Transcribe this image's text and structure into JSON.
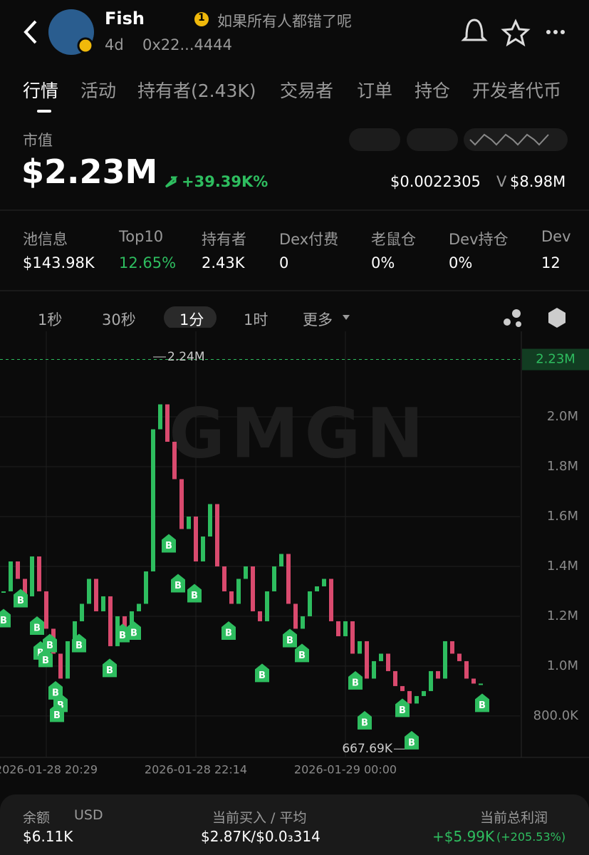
{
  "header": {
    "name": "Fish",
    "badge_num": "1",
    "slogan": "如果所有人都错了呢",
    "age": "4d",
    "address": "0x22...4444"
  },
  "tabs": [
    "行情",
    "活动",
    "持有者(2.43K)",
    "交易者",
    "订单",
    "持仓",
    "开发者代币"
  ],
  "market": {
    "label": "市值",
    "value": "$2.23M",
    "change": "+39.39K%",
    "price": "$0.0022305",
    "vol_prefix": "V",
    "volume": "$8.98M"
  },
  "stats": [
    {
      "label": "池信息",
      "value": "$143.98K"
    },
    {
      "label": "Top10",
      "value": "12.65%"
    },
    {
      "label": "持有者",
      "value": "2.43K"
    },
    {
      "label": "Dex付费",
      "value": "0"
    },
    {
      "label": "老鼠仓",
      "value": "0%"
    },
    {
      "label": "Dev持仓",
      "value": "0%"
    },
    {
      "label": "Dev",
      "value": "12"
    }
  ],
  "intervals": [
    "1秒",
    "30秒",
    "1分",
    "1时",
    "更多"
  ],
  "chart": {
    "type": "candlestick",
    "watermark": "GMGN",
    "closes": [
      1300000,
      1420000,
      1350000,
      1280000,
      1440000,
      1300000,
      1150000,
      1050000,
      950000,
      1100000,
      1180000,
      1250000,
      1350000,
      1220000,
      1280000,
      1080000,
      1200000,
      1150000,
      1220000,
      1250000,
      1380000,
      1950000,
      2050000,
      1900000,
      1750000,
      1550000,
      1600000,
      1420000,
      1520000,
      1650000,
      1400000,
      1300000,
      1250000,
      1350000,
      1400000,
      1220000,
      1180000,
      1300000,
      1400000,
      1450000,
      1250000,
      1150000,
      1200000,
      1300000,
      1320000,
      1350000,
      1180000,
      1120000,
      1180000,
      1050000,
      1100000,
      950000,
      1020000,
      1050000,
      980000,
      920000,
      900000,
      850000,
      880000,
      900000,
      980000,
      950000,
      1100000,
      1050000,
      1020000,
      950000,
      930000,
      930000
    ],
    "xlim": [
      -0.5,
      72.5
    ],
    "xticks": [
      {
        "value": 6,
        "label": "2026-01-28 20:29"
      },
      {
        "value": 27,
        "label": "2026-01-28 22:14"
      },
      {
        "value": 48,
        "label": "2026-01-29 00:00"
      }
    ],
    "ylim": [
      634000,
      2343000
    ],
    "yticks": [
      {
        "value": 800000,
        "label": "800.0K"
      },
      {
        "value": 1000000,
        "label": "1.0M"
      },
      {
        "value": 1200000,
        "label": "1.2M"
      },
      {
        "value": 1400000,
        "label": "1.4M"
      },
      {
        "value": 1600000,
        "label": "1.6M"
      },
      {
        "value": 1800000,
        "label": "1.8M"
      },
      {
        "value": 2000000,
        "label": "2.0M"
      }
    ],
    "current": {
      "value": 2230000,
      "label": "2.23M"
    },
    "high": {
      "x": 21,
      "value": 2240000,
      "label": "2.24M"
    },
    "low": {
      "x": 57,
      "value": 667690,
      "label": "667.69K"
    },
    "buy_label": "B",
    "buys": [
      {
        "x": 0,
        "value": 1190000
      },
      {
        "x": 2.4,
        "value": 1270000
      },
      {
        "x": 4.7,
        "value": 1160000
      },
      {
        "x": 5.2,
        "value": 1060000
      },
      {
        "x": 6.5,
        "value": 1090000
      },
      {
        "x": 5.9,
        "value": 1030000
      },
      {
        "x": 7.3,
        "value": 900000
      },
      {
        "x": 8,
        "value": 850000
      },
      {
        "x": 7.5,
        "value": 810000
      },
      {
        "x": 10.6,
        "value": 1090000
      },
      {
        "x": 14.9,
        "value": 990000
      },
      {
        "x": 16.7,
        "value": 1130000
      },
      {
        "x": 18.3,
        "value": 1140000
      },
      {
        "x": 23.2,
        "value": 1490000
      },
      {
        "x": 24.5,
        "value": 1330000
      },
      {
        "x": 26.8,
        "value": 1290000
      },
      {
        "x": 31.6,
        "value": 1140000
      },
      {
        "x": 36.3,
        "value": 970000
      },
      {
        "x": 40.2,
        "value": 1110000
      },
      {
        "x": 41.9,
        "value": 1050000
      },
      {
        "x": 49.4,
        "value": 940000
      },
      {
        "x": 50.7,
        "value": 780000
      },
      {
        "x": 56,
        "value": 830000
      },
      {
        "x": 57.3,
        "value": 700000
      },
      {
        "x": 67.2,
        "value": 850000
      }
    ],
    "up_color": "#2ebd5f",
    "down_color": "#d94a6e"
  },
  "footer": {
    "balance_label": "余额",
    "currency": "USD",
    "balance": "$6.11K",
    "buy_label": "当前买入 / 平均",
    "buy_value": "$2.87K/$0.0₃314",
    "pnl_label": "当前总利润",
    "pnl_value": "+$5.99K",
    "pnl_pct": "(+205.53%)"
  }
}
